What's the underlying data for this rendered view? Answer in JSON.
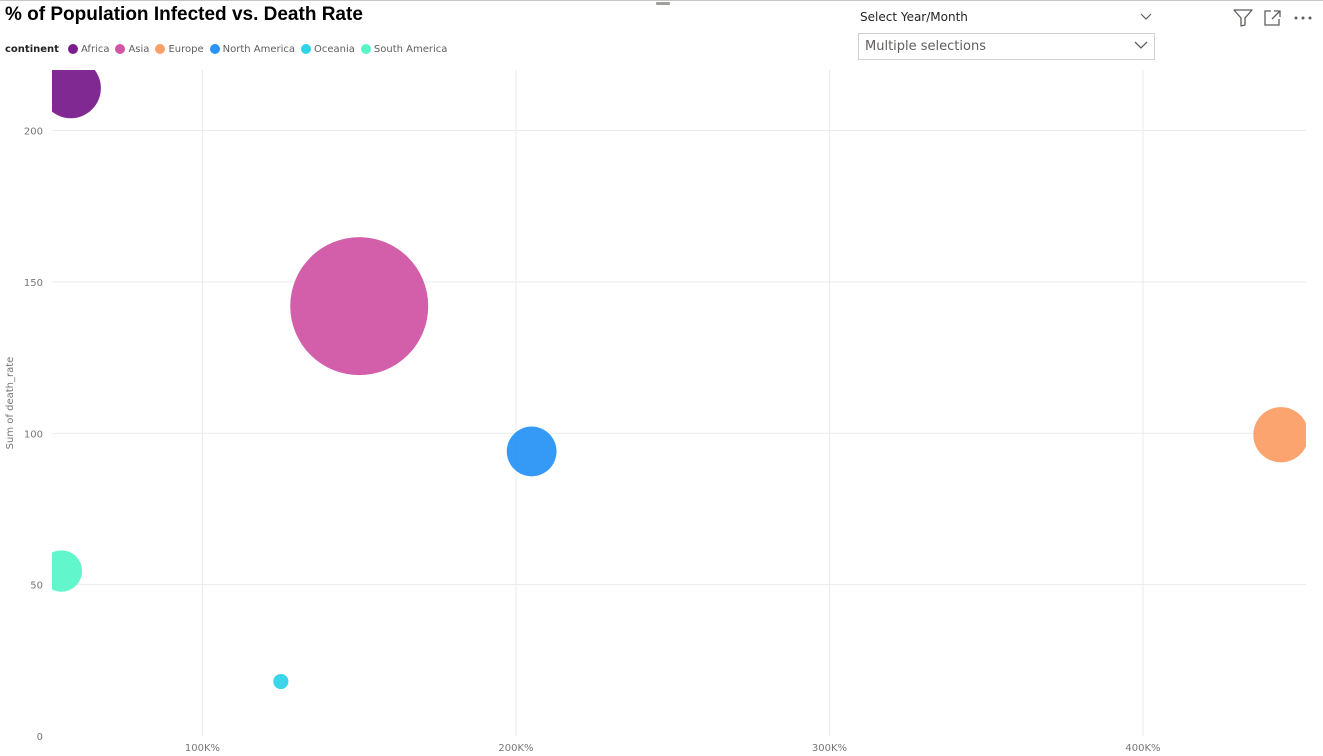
{
  "visual": {
    "title": "% of Population Infected vs. Death Rate"
  },
  "legend": {
    "title": "continent"
  },
  "slicer": {
    "header": "Select Year/Month",
    "value": "Multiple selections"
  },
  "toolbar": {
    "icons": [
      "filter-icon",
      "focus-mode-icon",
      "more-options-icon"
    ]
  },
  "chart_data": {
    "type": "scatter",
    "title": "% of Population Infected vs. Death Rate",
    "xlabel": "",
    "ylabel": "Sum of death_rate",
    "xlim": [
      52,
      452
    ],
    "ylim": [
      0,
      220
    ],
    "x_unit": "K%",
    "x_ticks": [
      {
        "value": 100,
        "label": "100K%"
      },
      {
        "value": 200,
        "label": "200K%"
      },
      {
        "value": 300,
        "label": "300K%"
      },
      {
        "value": 400,
        "label": "400K%"
      }
    ],
    "y_ticks": [
      {
        "value": 0,
        "label": "0"
      },
      {
        "value": 50,
        "label": "50"
      },
      {
        "value": 100,
        "label": "100"
      },
      {
        "value": 150,
        "label": "150"
      },
      {
        "value": 200,
        "label": "200"
      }
    ],
    "grid": true,
    "legend_position": "top-left",
    "bubble_size_relative": true,
    "series": [
      {
        "name": "Africa",
        "color": "#7a1e8c",
        "x": 58,
        "y": 214,
        "size": 0.19
      },
      {
        "name": "Asia",
        "color": "#d156a5",
        "x": 150,
        "y": 142,
        "size": 1.0
      },
      {
        "name": "Europe",
        "color": "#fc9f68",
        "x": 444,
        "y": 99.5,
        "size": 0.16
      },
      {
        "name": "North America",
        "color": "#2a93f5",
        "x": 205,
        "y": 94,
        "size": 0.13
      },
      {
        "name": "Oceania",
        "color": "#2fd3e8",
        "x": 125,
        "y": 18,
        "size": 0.012
      },
      {
        "name": "South America",
        "color": "#58f5c8",
        "x": 55,
        "y": 54.5,
        "size": 0.09
      }
    ]
  }
}
